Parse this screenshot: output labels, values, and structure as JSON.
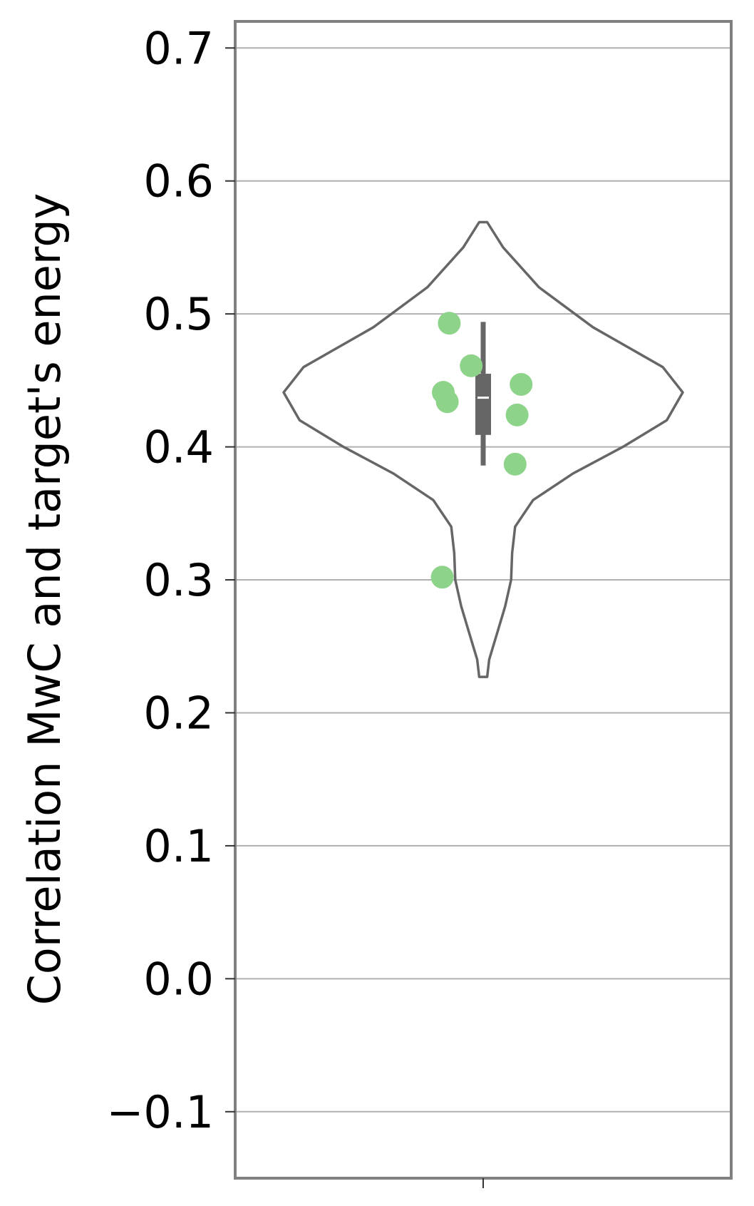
{
  "chart_data": {
    "type": "violin",
    "title": "",
    "xlabel": "",
    "ylabel": "Correlation MwC and target's energy",
    "ylim": [
      -0.15,
      0.72
    ],
    "yticks": [
      -0.1,
      0.0,
      0.1,
      0.2,
      0.3,
      0.4,
      0.5,
      0.6,
      0.7
    ],
    "ytick_labels": [
      "−0.1",
      "0.0",
      "0.1",
      "0.2",
      "0.3",
      "0.4",
      "0.5",
      "0.6",
      "0.7"
    ],
    "grid": "horizontal",
    "violin": {
      "range": [
        0.227,
        0.569
      ],
      "profile": [
        {
          "y": 0.569,
          "w": 0.02
        },
        {
          "y": 0.55,
          "w": 0.1
        },
        {
          "y": 0.52,
          "w": 0.28
        },
        {
          "y": 0.49,
          "w": 0.55
        },
        {
          "y": 0.46,
          "w": 0.9
        },
        {
          "y": 0.441,
          "w": 1.0
        },
        {
          "y": 0.42,
          "w": 0.92
        },
        {
          "y": 0.4,
          "w": 0.7
        },
        {
          "y": 0.38,
          "w": 0.45
        },
        {
          "y": 0.36,
          "w": 0.25
        },
        {
          "y": 0.34,
          "w": 0.16
        },
        {
          "y": 0.32,
          "w": 0.145
        },
        {
          "y": 0.3,
          "w": 0.14
        },
        {
          "y": 0.28,
          "w": 0.11
        },
        {
          "y": 0.26,
          "w": 0.07
        },
        {
          "y": 0.24,
          "w": 0.03
        },
        {
          "y": 0.227,
          "w": 0.02
        }
      ],
      "outline_color": "#666666"
    },
    "box": {
      "q1": 0.409,
      "median": 0.437,
      "q3": 0.455,
      "whisker_low": 0.386,
      "whisker_high": 0.494,
      "color": "#666666"
    },
    "points": {
      "color": "#8dd38a",
      "values": [
        {
          "y": 0.493,
          "jitter": -0.34
        },
        {
          "y": 0.461,
          "jitter": -0.12
        },
        {
          "y": 0.447,
          "jitter": 0.38
        },
        {
          "y": 0.441,
          "jitter": -0.4
        },
        {
          "y": 0.434,
          "jitter": -0.36
        },
        {
          "y": 0.424,
          "jitter": 0.34
        },
        {
          "y": 0.387,
          "jitter": 0.32
        },
        {
          "y": 0.302,
          "jitter": -0.41
        }
      ]
    }
  }
}
